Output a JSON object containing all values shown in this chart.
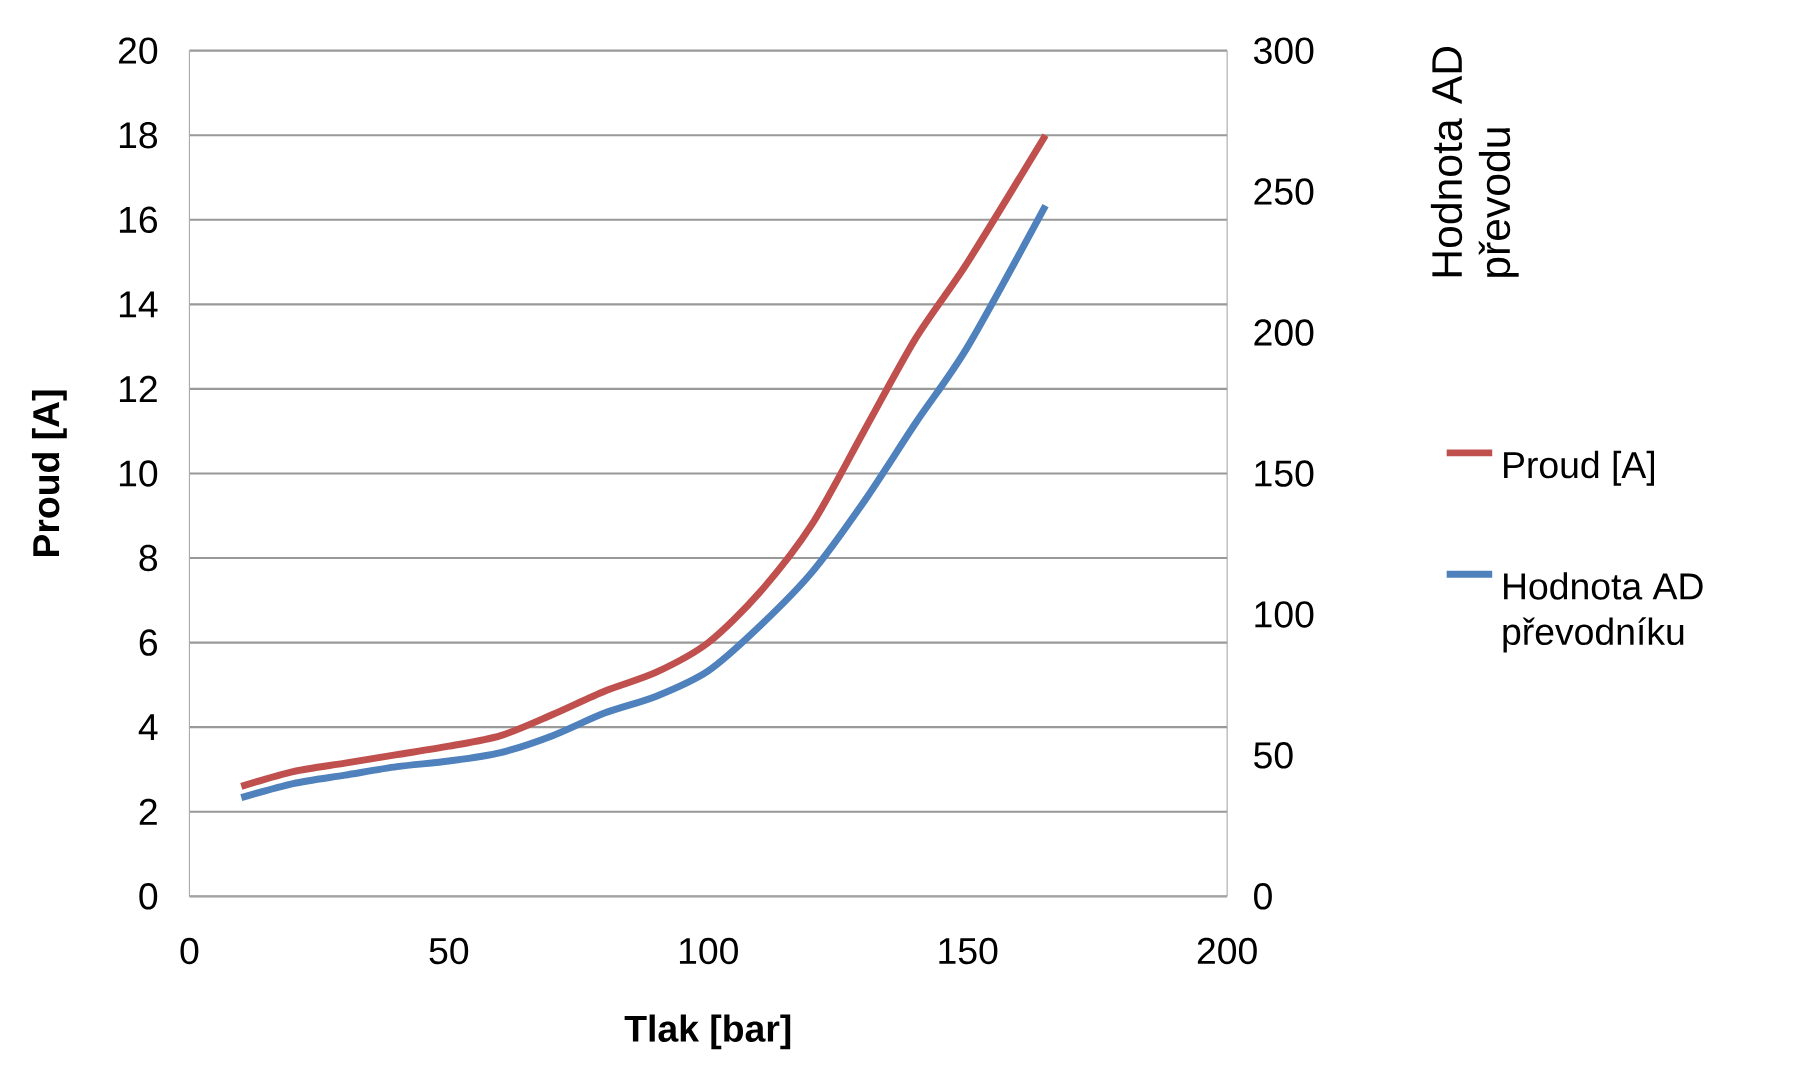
{
  "chart_data": {
    "type": "line",
    "xlabel": "Tlak [bar]",
    "ylabel": "Proud [A]",
    "y2label": "Hodnota AD převodu",
    "x": [
      10,
      20,
      30,
      40,
      50,
      60,
      70,
      80,
      90,
      100,
      110,
      120,
      130,
      140,
      150,
      165
    ],
    "series": [
      {
        "name": "Proud [A]",
        "color": "#c0504d",
        "values": [
          2.6,
          2.95,
          3.15,
          3.35,
          3.55,
          3.8,
          4.3,
          4.85,
          5.3,
          6.0,
          7.2,
          8.8,
          11.0,
          13.2,
          15.0,
          18.0
        ]
      },
      {
        "name": "Hodnota AD převodníku",
        "color": "#4f81bd",
        "axis": "y2",
        "values": [
          35,
          40,
          43,
          46,
          48,
          51,
          57,
          65,
          71,
          80,
          96,
          115,
          140,
          168,
          195,
          245
        ]
      }
    ],
    "xlim": [
      0,
      200
    ],
    "xticks": [
      0,
      50,
      100,
      150,
      200
    ],
    "ylim": [
      0,
      20
    ],
    "yticks": [
      0,
      2,
      4,
      6,
      8,
      10,
      12,
      14,
      16,
      18,
      20
    ],
    "y2lim": [
      0,
      300
    ],
    "y2ticks": [
      0,
      50,
      100,
      150,
      200,
      250,
      300
    ],
    "grid": "y",
    "legend": "right",
    "marker": "none",
    "line_style": "solid"
  }
}
